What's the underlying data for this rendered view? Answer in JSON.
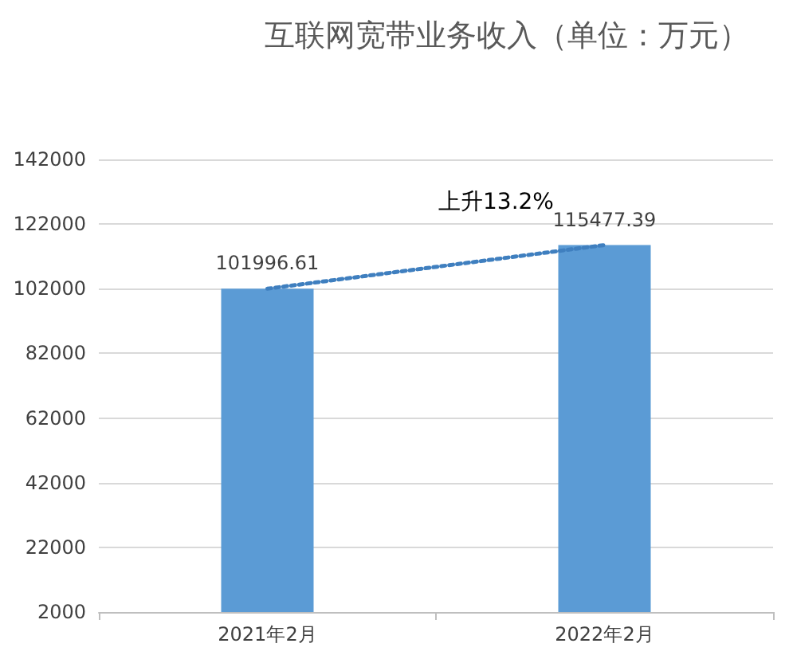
{
  "chart_data": {
    "type": "bar",
    "title": "互联网宽带业务收入（单位：万元）",
    "categories": [
      "2021年2月",
      "2022年2月"
    ],
    "series": [
      {
        "color": "#5b9bd5",
        "values": [
          101996.61,
          115477.39
        ],
        "value_labels": [
          "101996.61",
          "115477.39"
        ]
      },
      {
        "type": "line",
        "color": "#3f7fbf",
        "values": [
          102000,
          115500
        ],
        "line_style": "dotted",
        "marker": "none"
      }
    ],
    "ylim": [
      2000,
      142000
    ],
    "yticks": [
      2000,
      22000,
      42000,
      62000,
      82000,
      102000,
      122000,
      142000
    ],
    "grid": "y",
    "annotations": [
      "上升13.2%"
    ]
  }
}
